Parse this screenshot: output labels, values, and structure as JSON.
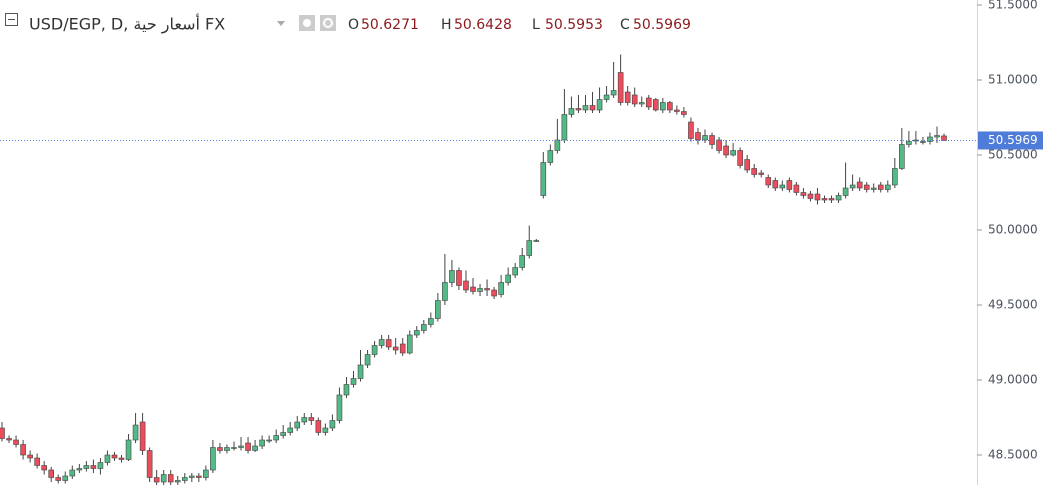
{
  "chart_data": {
    "type": "candlestick",
    "title": "USD/EGP, D, أسعار حية FX",
    "ohlc_labels": [
      "O",
      "H",
      "L",
      "C"
    ],
    "up_color": "#53b987",
    "down_color": "#eb4d5c",
    "price_line_color": "#4f7bd9",
    "ylim": [
      48.3,
      51.5333
    ],
    "yticks": [
      {
        "value": 48.5,
        "label": "48.5000"
      },
      {
        "value": 49.0,
        "label": "49.0000"
      },
      {
        "value": 49.5,
        "label": "49.5000"
      },
      {
        "value": 50.0,
        "label": "50.0000"
      },
      {
        "value": 50.5,
        "label": "50.5000"
      },
      {
        "value": 51.0,
        "label": "51.0000"
      },
      {
        "value": 51.5,
        "label": "51.5000"
      }
    ],
    "open": [
      48.68,
      48.61,
      48.6,
      48.57,
      48.5,
      48.48,
      48.43,
      48.4,
      48.35,
      48.33,
      48.36,
      48.4,
      48.41,
      48.43,
      48.41,
      48.45,
      48.5,
      48.48,
      48.47,
      48.6,
      48.72,
      48.53,
      48.35,
      48.32,
      48.37,
      48.32,
      48.33,
      48.35,
      48.36,
      48.35,
      48.4,
      48.55,
      48.53,
      48.55,
      48.55,
      48.58,
      48.53,
      48.56,
      48.6,
      48.6,
      48.63,
      48.65,
      48.68,
      48.72,
      48.75,
      48.73,
      48.65,
      48.68,
      48.73,
      48.9,
      48.97,
      49.01,
      49.1,
      49.17,
      49.23,
      49.27,
      49.22,
      49.24,
      49.18,
      49.3,
      49.33,
      49.37,
      49.41,
      49.53,
      49.65,
      49.73,
      49.66,
      49.62,
      49.59,
      49.61,
      49.6,
      49.57,
      49.65,
      49.7,
      49.75,
      49.83,
      49.93,
      50.23,
      50.45,
      50.53,
      50.6,
      50.77,
      50.81,
      50.8,
      50.83,
      50.8,
      50.87,
      50.9,
      51.05,
      50.92,
      50.9,
      50.84,
      50.88,
      50.87,
      50.8,
      50.85,
      50.8,
      50.79,
      50.72,
      50.65,
      50.6,
      50.63,
      50.6,
      50.56,
      50.5,
      50.53,
      50.47,
      50.41,
      50.38,
      50.35,
      50.33,
      50.28,
      50.33,
      50.3,
      50.25,
      50.24,
      50.24,
      50.21,
      50.21,
      50.2,
      50.23,
      50.28,
      50.32,
      50.3,
      50.27,
      50.3,
      50.27,
      50.3,
      50.41,
      50.57,
      50.6,
      50.59,
      50.59,
      50.62,
      50.6271
    ],
    "high": [
      48.72,
      48.63,
      48.63,
      48.6,
      48.53,
      48.51,
      48.46,
      48.42,
      48.37,
      48.39,
      48.43,
      48.44,
      48.46,
      48.47,
      48.48,
      48.53,
      48.52,
      48.5,
      48.64,
      48.78,
      48.78,
      48.55,
      48.4,
      48.4,
      48.4,
      48.36,
      48.38,
      48.38,
      48.38,
      48.43,
      48.6,
      48.58,
      48.57,
      48.59,
      48.62,
      48.62,
      48.6,
      48.63,
      48.63,
      48.67,
      48.7,
      48.72,
      48.76,
      48.78,
      48.78,
      48.75,
      48.71,
      48.77,
      48.95,
      49.02,
      49.06,
      49.2,
      49.2,
      49.26,
      49.3,
      49.3,
      49.28,
      49.28,
      49.33,
      49.36,
      49.4,
      49.45,
      49.58,
      49.84,
      49.8,
      49.75,
      49.73,
      49.68,
      49.64,
      49.67,
      49.62,
      49.7,
      49.75,
      49.78,
      49.88,
      50.03,
      49.94,
      50.52,
      50.57,
      50.74,
      50.94,
      50.89,
      50.9,
      50.9,
      50.92,
      50.95,
      50.96,
      51.12,
      51.17,
      50.96,
      50.95,
      50.89,
      50.9,
      50.88,
      50.88,
      50.86,
      50.83,
      50.82,
      50.75,
      50.68,
      50.67,
      50.65,
      50.62,
      50.6,
      50.58,
      50.55,
      50.5,
      50.44,
      50.4,
      50.37,
      50.35,
      50.33,
      50.35,
      50.32,
      50.28,
      50.26,
      50.28,
      50.23,
      50.23,
      50.25,
      50.45,
      50.37,
      50.35,
      50.32,
      50.31,
      50.32,
      50.33,
      50.48,
      50.68,
      50.66,
      50.66,
      50.62,
      50.65,
      50.69,
      50.6428
    ],
    "low": [
      48.59,
      48.58,
      48.55,
      48.47,
      48.45,
      48.41,
      48.37,
      48.32,
      48.31,
      48.31,
      48.34,
      48.38,
      48.39,
      48.38,
      48.37,
      48.43,
      48.46,
      48.45,
      48.46,
      48.58,
      48.5,
      48.32,
      48.3,
      48.3,
      48.3,
      48.3,
      48.31,
      48.32,
      48.32,
      48.33,
      48.38,
      48.51,
      48.51,
      48.53,
      48.53,
      48.51,
      48.52,
      48.54,
      48.58,
      48.58,
      48.61,
      48.63,
      48.66,
      48.7,
      48.7,
      48.63,
      48.63,
      48.66,
      48.71,
      48.88,
      48.95,
      48.99,
      49.08,
      49.15,
      49.21,
      49.2,
      49.17,
      49.16,
      49.17,
      49.28,
      49.31,
      49.35,
      49.39,
      49.5,
      49.62,
      49.6,
      49.58,
      49.57,
      49.56,
      49.56,
      49.54,
      49.55,
      49.63,
      49.68,
      49.73,
      49.81,
      49.92,
      50.21,
      50.43,
      50.51,
      50.58,
      50.75,
      50.78,
      50.78,
      50.78,
      50.78,
      50.85,
      50.88,
      50.83,
      50.83,
      50.82,
      50.82,
      50.8,
      50.79,
      50.78,
      50.78,
      50.77,
      50.75,
      50.59,
      50.57,
      50.58,
      50.54,
      50.51,
      50.48,
      50.49,
      50.41,
      50.38,
      50.35,
      50.35,
      50.28,
      50.26,
      50.26,
      50.25,
      50.23,
      50.21,
      50.19,
      50.17,
      50.18,
      50.18,
      50.18,
      50.21,
      50.26,
      50.26,
      50.25,
      50.25,
      50.25,
      50.25,
      50.28,
      50.4,
      50.55,
      50.57,
      50.57,
      50.57,
      50.58,
      50.5953
    ],
    "close": [
      48.61,
      48.6,
      48.57,
      48.5,
      48.48,
      48.43,
      48.4,
      48.35,
      48.33,
      48.36,
      48.4,
      48.41,
      48.43,
      48.41,
      48.45,
      48.5,
      48.48,
      48.47,
      48.6,
      48.7,
      48.53,
      48.35,
      48.32,
      48.37,
      48.32,
      48.33,
      48.35,
      48.36,
      48.35,
      48.4,
      48.55,
      48.53,
      48.55,
      48.55,
      48.56,
      48.53,
      48.56,
      48.6,
      48.6,
      48.63,
      48.65,
      48.68,
      48.72,
      48.75,
      48.73,
      48.65,
      48.68,
      48.73,
      48.9,
      48.97,
      49.01,
      49.1,
      49.17,
      49.23,
      49.27,
      49.22,
      49.2,
      49.18,
      49.3,
      49.33,
      49.37,
      49.41,
      49.53,
      49.65,
      49.73,
      49.63,
      49.6,
      49.59,
      49.61,
      49.6,
      49.56,
      49.65,
      49.7,
      49.75,
      49.83,
      49.93,
      49.93,
      50.45,
      50.53,
      50.6,
      50.77,
      50.81,
      50.8,
      50.83,
      50.8,
      50.87,
      50.9,
      50.93,
      50.85,
      50.85,
      50.84,
      50.85,
      50.82,
      50.8,
      50.85,
      50.8,
      50.79,
      50.77,
      50.61,
      50.6,
      50.63,
      50.57,
      50.53,
      50.5,
      50.53,
      50.43,
      50.4,
      50.37,
      50.37,
      50.3,
      50.28,
      50.3,
      50.27,
      50.25,
      50.23,
      50.21,
      50.2,
      50.2,
      50.2,
      50.23,
      50.28,
      50.3,
      50.28,
      50.27,
      50.28,
      50.27,
      50.3,
      50.41,
      50.57,
      50.59,
      50.6,
      50.59,
      50.62,
      50.63,
      50.5969
    ]
  }
}
